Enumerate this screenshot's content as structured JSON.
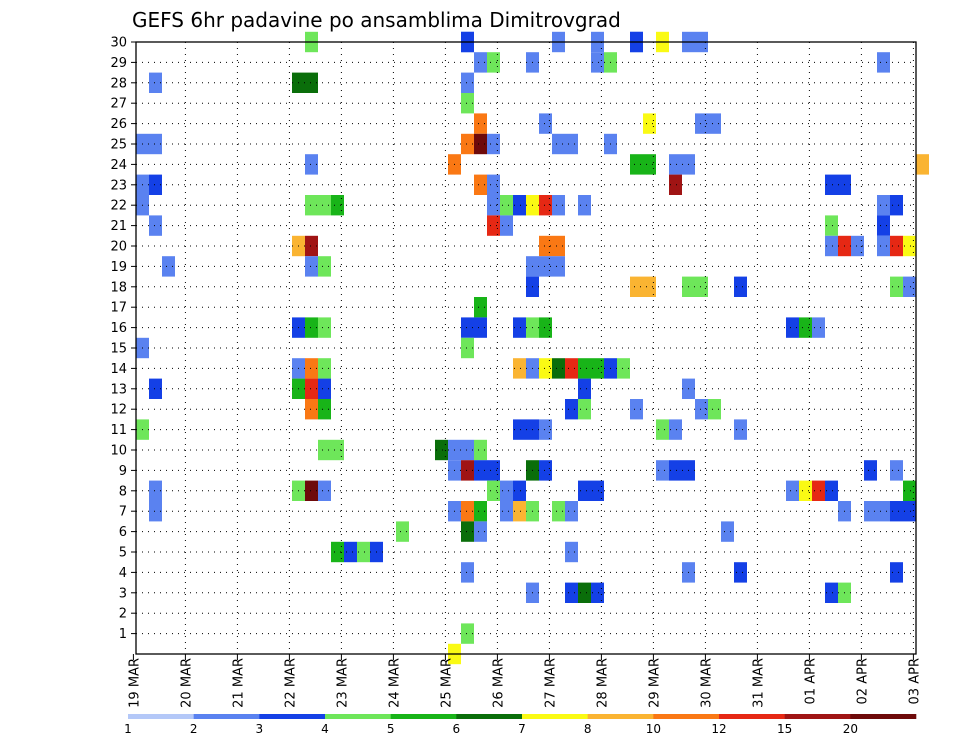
{
  "chart_data": {
    "type": "heatmap",
    "title": "GEFS 6hr padavine po ansamblima Dimitrovgrad",
    "xlabel": "",
    "ylabel": "",
    "y_range": [
      0,
      30
    ],
    "y_tick_labels": [
      "1",
      "2",
      "3",
      "4",
      "5",
      "6",
      "7",
      "8",
      "9",
      "10",
      "11",
      "12",
      "13",
      "14",
      "15",
      "16",
      "17",
      "18",
      "19",
      "20",
      "21",
      "22",
      "23",
      "24",
      "25",
      "26",
      "27",
      "28",
      "29",
      "30"
    ],
    "x_unit": "6-hour steps",
    "x_range": [
      0,
      60
    ],
    "x_tick_labels": [
      "19 MAR",
      "20 MAR",
      "21 MAR",
      "22 MAR",
      "23 MAR",
      "24 MAR",
      "25 MAR",
      "26 MAR",
      "27 MAR",
      "28 MAR",
      "29 MAR",
      "30 MAR",
      "31 MAR",
      "01 APR",
      "02 APR",
      "03 APR"
    ],
    "grid": true,
    "colorbar": {
      "levels": [
        "1",
        "2",
        "3",
        "4",
        "5",
        "6",
        "7",
        "8",
        "10",
        "12",
        "15",
        "20"
      ],
      "colors": [
        "#b4c8f8",
        "#5a82f0",
        "#1440e6",
        "#6ee65a",
        "#18b418",
        "#0a6e0a",
        "#fafa14",
        "#fab432",
        "#fa7814",
        "#e62814",
        "#a01414",
        "#6e0a0a"
      ]
    },
    "cells": [
      [
        13,
        30,
        3
      ],
      [
        25,
        30,
        1
      ],
      [
        25,
        30,
        2
      ],
      [
        32,
        30,
        1
      ],
      [
        35,
        30,
        1
      ],
      [
        38,
        30,
        1
      ],
      [
        38,
        30,
        2
      ],
      [
        40,
        30,
        6
      ],
      [
        42,
        30,
        1
      ],
      [
        43,
        30,
        1
      ],
      [
        26,
        29,
        1
      ],
      [
        27,
        29,
        3
      ],
      [
        30,
        29,
        1
      ],
      [
        35,
        29,
        1
      ],
      [
        36,
        29,
        3
      ],
      [
        57,
        29,
        1
      ],
      [
        1,
        28,
        1
      ],
      [
        12,
        28,
        5
      ],
      [
        13,
        28,
        5
      ],
      [
        25,
        28,
        1
      ],
      [
        25,
        27,
        3
      ],
      [
        26,
        26,
        8
      ],
      [
        31,
        26,
        1
      ],
      [
        39,
        26,
        6
      ],
      [
        43,
        26,
        1
      ],
      [
        44,
        26,
        1
      ],
      [
        0,
        25,
        1
      ],
      [
        1,
        25,
        1
      ],
      [
        25,
        25,
        8
      ],
      [
        26,
        25,
        11
      ],
      [
        27,
        25,
        1
      ],
      [
        32,
        25,
        1
      ],
      [
        33,
        25,
        1
      ],
      [
        36,
        25,
        1
      ],
      [
        13,
        24,
        1
      ],
      [
        24,
        24,
        8
      ],
      [
        38,
        24,
        4
      ],
      [
        39,
        24,
        4
      ],
      [
        41,
        24,
        1
      ],
      [
        42,
        24,
        1
      ],
      [
        60,
        24,
        7
      ],
      [
        0,
        23,
        1
      ],
      [
        1,
        23,
        2
      ],
      [
        26,
        23,
        8
      ],
      [
        27,
        23,
        1
      ],
      [
        41,
        23,
        10
      ],
      [
        53,
        23,
        2
      ],
      [
        54,
        23,
        2
      ],
      [
        0,
        22,
        1
      ],
      [
        13,
        22,
        3
      ],
      [
        14,
        22,
        3
      ],
      [
        15,
        22,
        4
      ],
      [
        27,
        22,
        1
      ],
      [
        28,
        22,
        3
      ],
      [
        29,
        22,
        2
      ],
      [
        30,
        22,
        6
      ],
      [
        31,
        22,
        9
      ],
      [
        32,
        22,
        1
      ],
      [
        34,
        22,
        1
      ],
      [
        57,
        22,
        1
      ],
      [
        58,
        22,
        2
      ],
      [
        1,
        21,
        1
      ],
      [
        27,
        21,
        9
      ],
      [
        28,
        21,
        1
      ],
      [
        53,
        21,
        3
      ],
      [
        57,
        21,
        2
      ],
      [
        12,
        20,
        7
      ],
      [
        13,
        20,
        10
      ],
      [
        31,
        20,
        8
      ],
      [
        32,
        20,
        8
      ],
      [
        53,
        20,
        1
      ],
      [
        54,
        20,
        9
      ],
      [
        55,
        20,
        1
      ],
      [
        57,
        20,
        1
      ],
      [
        58,
        20,
        9
      ],
      [
        59,
        20,
        6
      ],
      [
        2,
        19,
        1
      ],
      [
        13,
        19,
        1
      ],
      [
        14,
        19,
        3
      ],
      [
        30,
        19,
        1
      ],
      [
        31,
        19,
        1
      ],
      [
        32,
        19,
        1
      ],
      [
        30,
        18,
        2
      ],
      [
        38,
        18,
        7
      ],
      [
        39,
        18,
        7
      ],
      [
        42,
        18,
        3
      ],
      [
        43,
        18,
        3
      ],
      [
        46,
        18,
        2
      ],
      [
        58,
        18,
        3
      ],
      [
        59,
        18,
        1
      ],
      [
        26,
        17,
        4
      ],
      [
        12,
        16,
        2
      ],
      [
        13,
        16,
        4
      ],
      [
        14,
        16,
        3
      ],
      [
        25,
        16,
        2
      ],
      [
        26,
        16,
        2
      ],
      [
        29,
        16,
        2
      ],
      [
        30,
        16,
        3
      ],
      [
        31,
        16,
        4
      ],
      [
        50,
        16,
        2
      ],
      [
        51,
        16,
        4
      ],
      [
        52,
        16,
        1
      ],
      [
        0,
        15,
        1
      ],
      [
        25,
        15,
        3
      ],
      [
        12,
        14,
        1
      ],
      [
        13,
        14,
        8
      ],
      [
        14,
        14,
        3
      ],
      [
        29,
        14,
        7
      ],
      [
        30,
        14,
        1
      ],
      [
        31,
        14,
        6
      ],
      [
        32,
        14,
        5
      ],
      [
        33,
        14,
        9
      ],
      [
        34,
        14,
        4
      ],
      [
        35,
        14,
        4
      ],
      [
        36,
        14,
        2
      ],
      [
        37,
        14,
        3
      ],
      [
        1,
        13,
        2
      ],
      [
        12,
        13,
        4
      ],
      [
        13,
        13,
        9
      ],
      [
        14,
        13,
        2
      ],
      [
        34,
        13,
        2
      ],
      [
        42,
        13,
        1
      ],
      [
        13,
        12,
        8
      ],
      [
        14,
        12,
        4
      ],
      [
        33,
        12,
        2
      ],
      [
        34,
        12,
        3
      ],
      [
        38,
        12,
        1
      ],
      [
        43,
        12,
        1
      ],
      [
        44,
        12,
        3
      ],
      [
        0,
        11,
        3
      ],
      [
        29,
        11,
        2
      ],
      [
        30,
        11,
        2
      ],
      [
        31,
        11,
        1
      ],
      [
        40,
        11,
        3
      ],
      [
        41,
        11,
        1
      ],
      [
        46,
        11,
        1
      ],
      [
        14,
        10,
        3
      ],
      [
        15,
        10,
        3
      ],
      [
        23,
        10,
        5
      ],
      [
        24,
        10,
        1
      ],
      [
        25,
        10,
        1
      ],
      [
        26,
        10,
        3
      ],
      [
        24,
        9,
        1
      ],
      [
        25,
        9,
        10
      ],
      [
        26,
        9,
        2
      ],
      [
        27,
        9,
        2
      ],
      [
        30,
        9,
        5
      ],
      [
        31,
        9,
        2
      ],
      [
        40,
        9,
        1
      ],
      [
        41,
        9,
        2
      ],
      [
        42,
        9,
        2
      ],
      [
        56,
        9,
        2
      ],
      [
        58,
        9,
        1
      ],
      [
        1,
        8,
        1
      ],
      [
        12,
        8,
        3
      ],
      [
        13,
        8,
        11
      ],
      [
        14,
        8,
        1
      ],
      [
        27,
        8,
        3
      ],
      [
        28,
        8,
        1
      ],
      [
        29,
        8,
        2
      ],
      [
        34,
        8,
        2
      ],
      [
        35,
        8,
        2
      ],
      [
        50,
        8,
        1
      ],
      [
        51,
        8,
        6
      ],
      [
        52,
        8,
        9
      ],
      [
        53,
        8,
        2
      ],
      [
        59,
        8,
        4
      ],
      [
        1,
        7,
        1
      ],
      [
        24,
        7,
        1
      ],
      [
        25,
        7,
        8
      ],
      [
        26,
        7,
        4
      ],
      [
        28,
        7,
        1
      ],
      [
        29,
        7,
        7
      ],
      [
        30,
        7,
        3
      ],
      [
        32,
        7,
        3
      ],
      [
        33,
        7,
        1
      ],
      [
        54,
        7,
        1
      ],
      [
        56,
        7,
        1
      ],
      [
        57,
        7,
        1
      ],
      [
        58,
        7,
        2
      ],
      [
        59,
        7,
        2
      ],
      [
        20,
        6,
        3
      ],
      [
        25,
        6,
        5
      ],
      [
        26,
        6,
        1
      ],
      [
        45,
        6,
        1
      ],
      [
        15,
        5,
        4
      ],
      [
        16,
        5,
        2
      ],
      [
        17,
        5,
        3
      ],
      [
        18,
        5,
        2
      ],
      [
        33,
        5,
        1
      ],
      [
        25,
        4,
        1
      ],
      [
        42,
        4,
        1
      ],
      [
        46,
        4,
        2
      ],
      [
        58,
        4,
        2
      ],
      [
        30,
        3,
        1
      ],
      [
        33,
        3,
        2
      ],
      [
        34,
        3,
        5
      ],
      [
        35,
        3,
        2
      ],
      [
        53,
        3,
        2
      ],
      [
        54,
        3,
        3
      ],
      [
        25,
        1,
        3
      ],
      [
        24,
        0,
        6
      ]
    ]
  }
}
